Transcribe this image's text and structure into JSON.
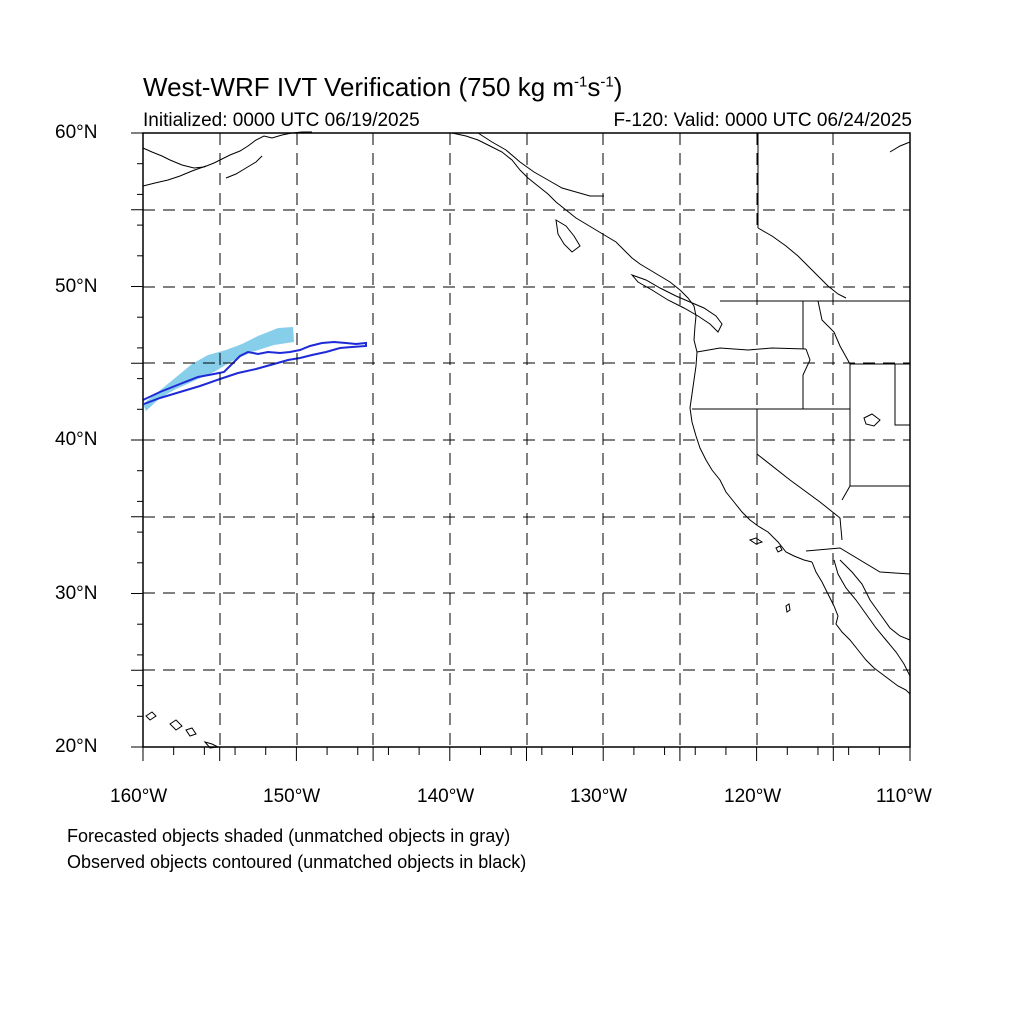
{
  "header": {
    "title_main": "West-WRF IVT Verification (750 kg m",
    "title_exp1": "-1",
    "title_mid": "s",
    "title_exp2": "-1",
    "title_end": ")",
    "initialized": "Initialized: 0000 UTC 06/19/2025",
    "valid": "F-120: Valid: 0000 UTC 06/24/2025"
  },
  "map": {
    "projection": "cylindrical equidistant",
    "extent": {
      "lon_min": -160,
      "lon_max": -110,
      "lat_min": 20,
      "lat_max": 60
    },
    "grid": "dashed every 5 degrees",
    "lat_labels": [
      "60°N",
      "50°N",
      "40°N",
      "30°N",
      "20°N"
    ],
    "lon_labels": [
      "160°W",
      "150°W",
      "140°W",
      "130°W",
      "120°W",
      "110°W"
    ],
    "colors": {
      "forecast_fill": "#87ceeb",
      "observed_contour": "#1e2ad8",
      "coastline": "#000000",
      "gridline": "#000000"
    }
  },
  "notes": {
    "line1": "Forecasted objects shaded (unmatched objects in gray)",
    "line2": "Observed objects contoured (unmatched objects in black)"
  }
}
